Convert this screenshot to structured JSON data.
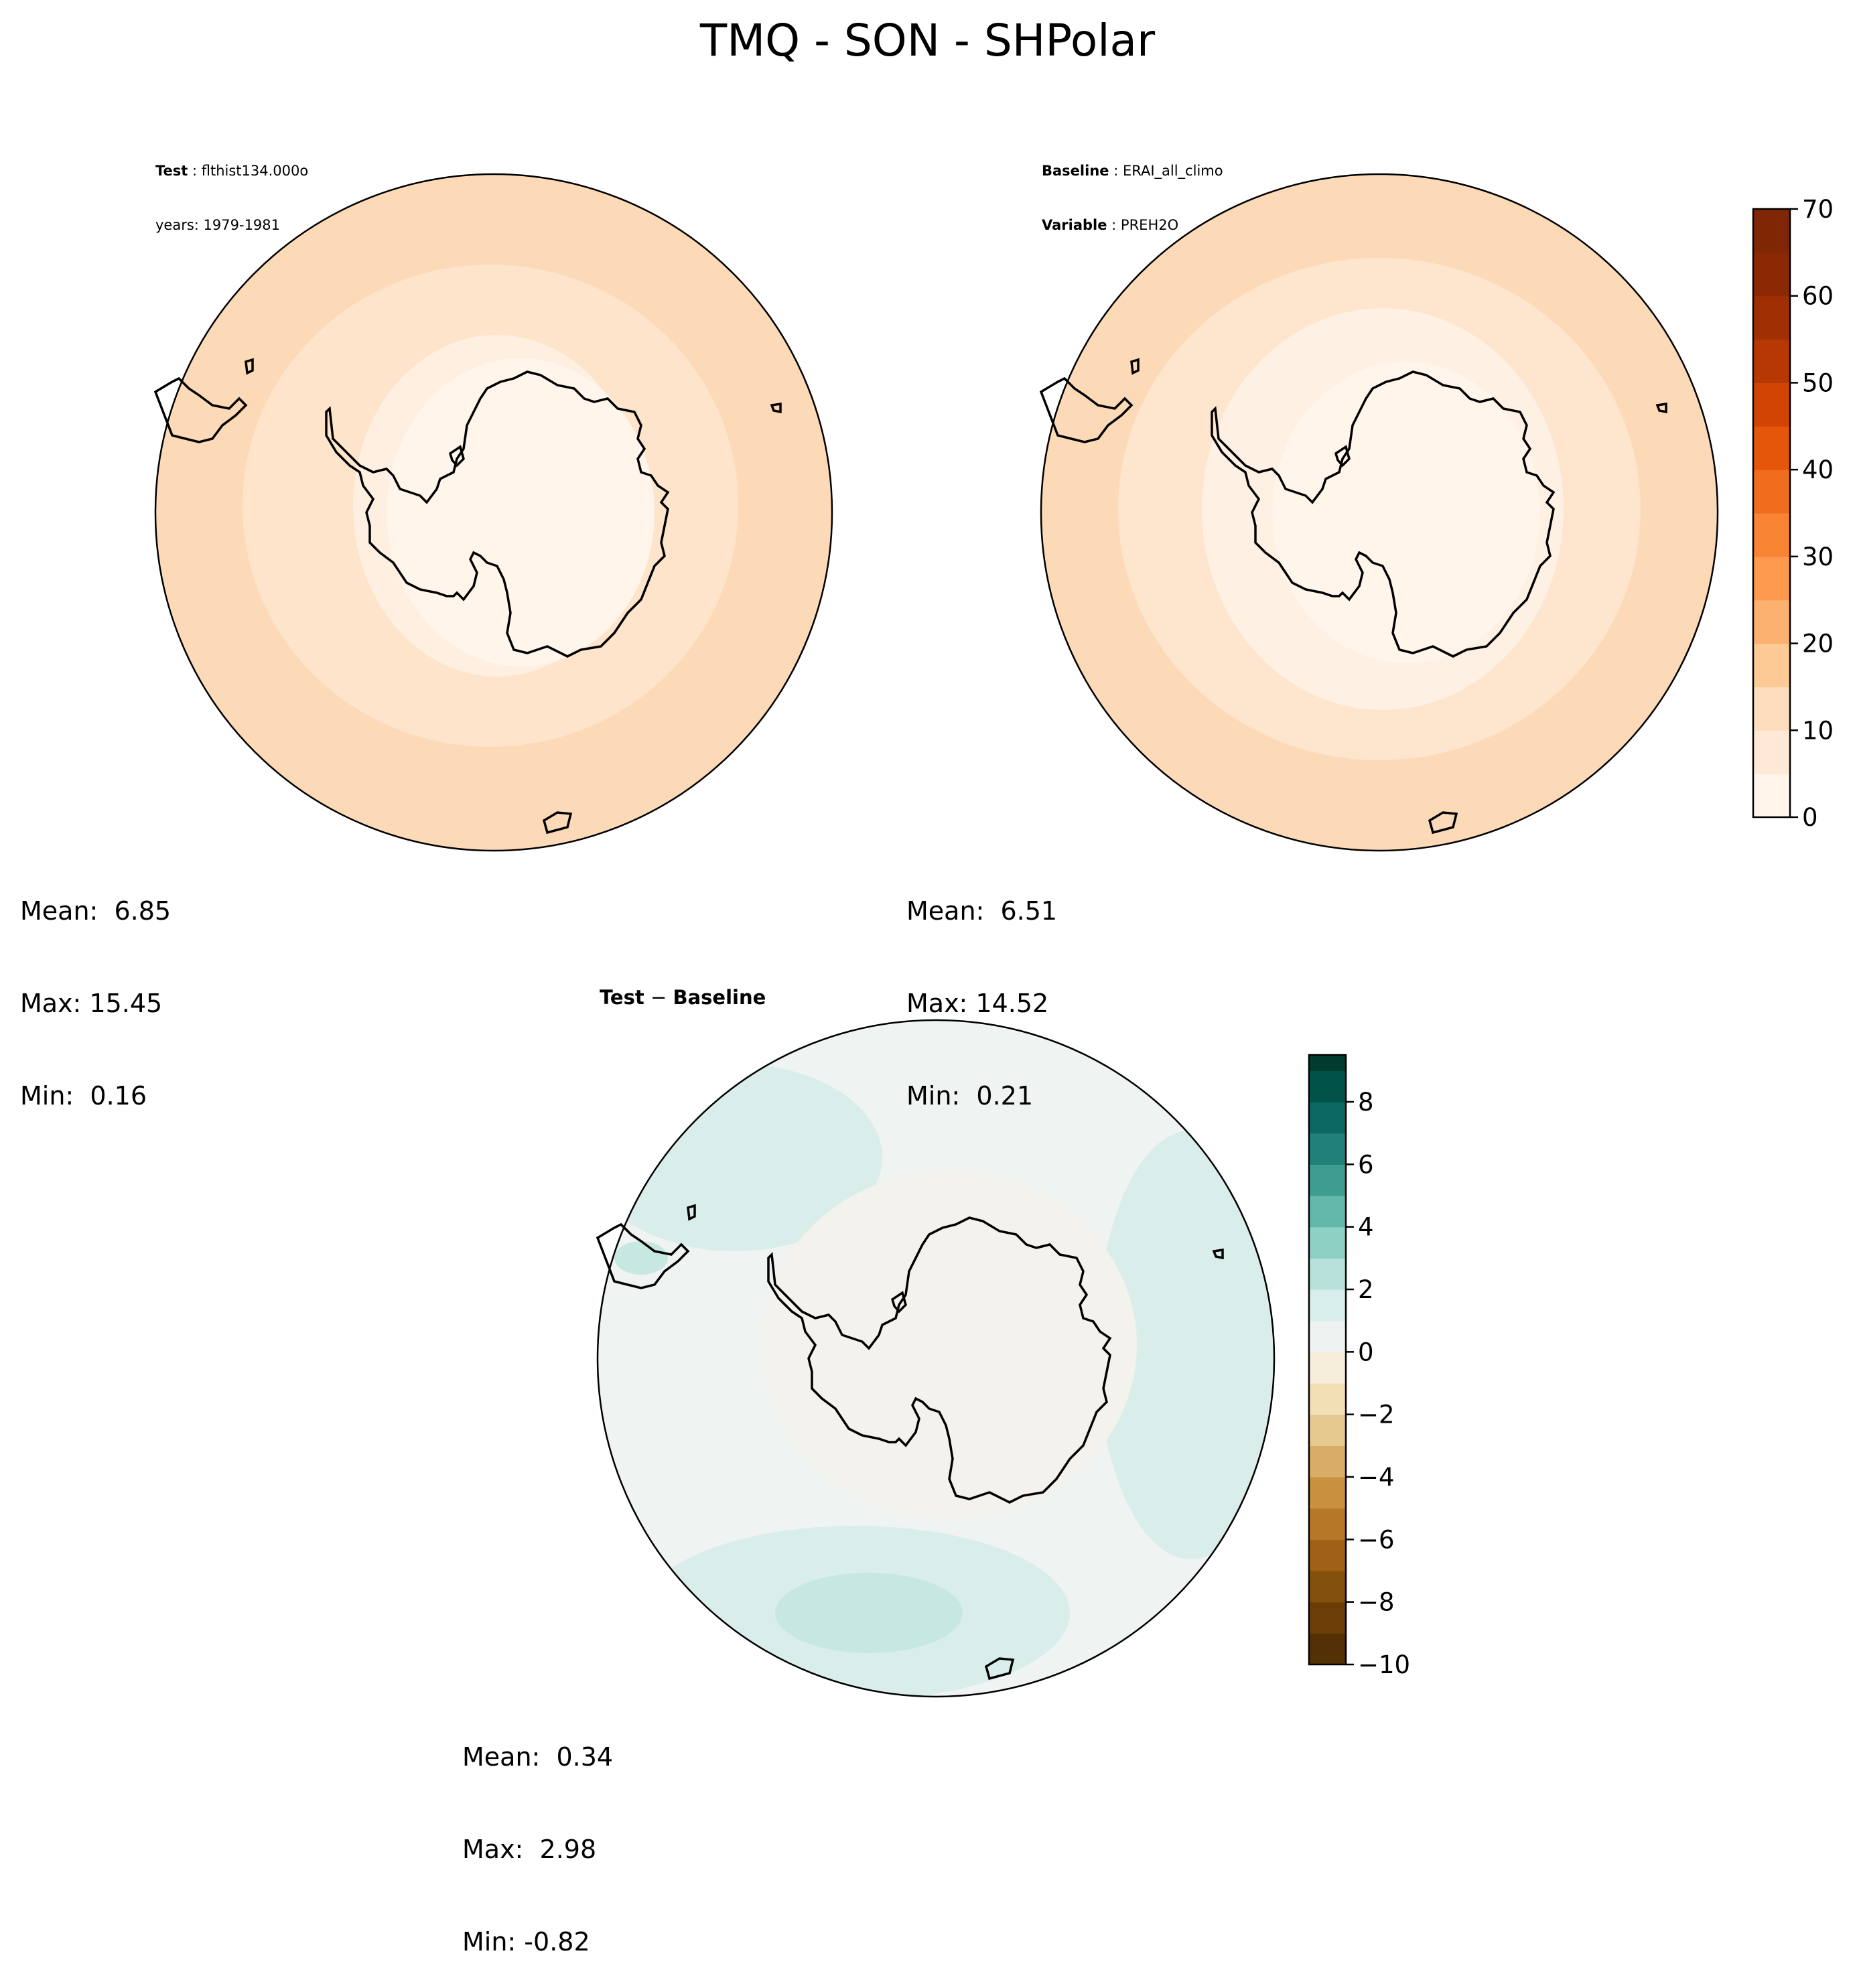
{
  "figure": {
    "title": "TMQ - SON - SHPolar"
  },
  "panels": {
    "test": {
      "label_key": "Test",
      "label_value": "flthist134.000o",
      "years": "years: 1979-1981",
      "stats": {
        "mean": "Mean:  6.85",
        "max": "Max: 15.45",
        "min": "Min:  0.16"
      },
      "mean": 6.85,
      "max": 15.45,
      "min": 0.16
    },
    "baseline": {
      "label_key": "Baseline",
      "label_value": "ERAI_all_climo",
      "variable_key": "Variable",
      "variable_value": "PREH2O",
      "stats": {
        "mean": "Mean:  6.51",
        "max": "Max: 14.52",
        "min": "Min:  0.21"
      },
      "mean": 6.51,
      "max": 14.52,
      "min": 0.21
    },
    "diff": {
      "title_left": "Test",
      "title_op": " − ",
      "title_right": "Baseline",
      "stats": {
        "mean": "Mean:  0.34",
        "max": "Max:  2.98",
        "min": "Min: -0.82"
      },
      "mean": 0.34,
      "max": 2.98,
      "min": -0.82
    }
  },
  "colorbars": {
    "main": {
      "colormap": "Oranges",
      "levels": [
        0,
        5,
        10,
        15,
        20,
        25,
        30,
        35,
        40,
        45,
        50,
        55,
        60,
        65,
        70
      ],
      "ticks": [
        0,
        10,
        20,
        30,
        40,
        50,
        60,
        70
      ],
      "tick_labels": [
        "0",
        "10",
        "20",
        "30",
        "40",
        "50",
        "60",
        "70"
      ],
      "colors": [
        "#fff5eb",
        "#fee9d6",
        "#fdddbd",
        "#fdc995",
        "#fdb170",
        "#fd9a50",
        "#f88434",
        "#ef6d1d",
        "#e5560b",
        "#d24403",
        "#b73803",
        "#a03003",
        "#8b2904",
        "#7f2704"
      ]
    },
    "diff": {
      "colormap": "BrBG",
      "levels": [
        -10,
        -9,
        -8,
        -7,
        -6,
        -5,
        -4,
        -3,
        -2,
        -1,
        0,
        1,
        2,
        3,
        4,
        5,
        6,
        7,
        8,
        9,
        9.5
      ],
      "ticks": [
        -10,
        -8,
        -6,
        -4,
        -2,
        0,
        2,
        4,
        6,
        8
      ],
      "tick_labels": [
        "−10",
        "−8",
        "−6",
        "−4",
        "−2",
        "0",
        "2",
        "4",
        "6",
        "8"
      ],
      "colors": [
        "#543005",
        "#6b3e08",
        "#84500d",
        "#9e6116",
        "#b77728",
        "#c9913f",
        "#d8ad65",
        "#e6c98f",
        "#f1dfb5",
        "#f6eedb",
        "#eef2f0",
        "#d8eeea",
        "#b7e1da",
        "#8fd0c4",
        "#64b7ab",
        "#3f9c91",
        "#1f8178",
        "#0b6961",
        "#01534a",
        "#003c30"
      ]
    }
  },
  "map_fills": {
    "test": [
      "#fddab7",
      "#fde4cb",
      "#feefe0",
      "#fff5eb"
    ],
    "baseline": [
      "#fddab7",
      "#fee5cd",
      "#fef0e2",
      "#fff5eb"
    ],
    "diff": [
      "#eff3f2",
      "#d9eeea",
      "#f4f2ec",
      "#c7e8e1"
    ]
  },
  "coast_color": "#000000"
}
